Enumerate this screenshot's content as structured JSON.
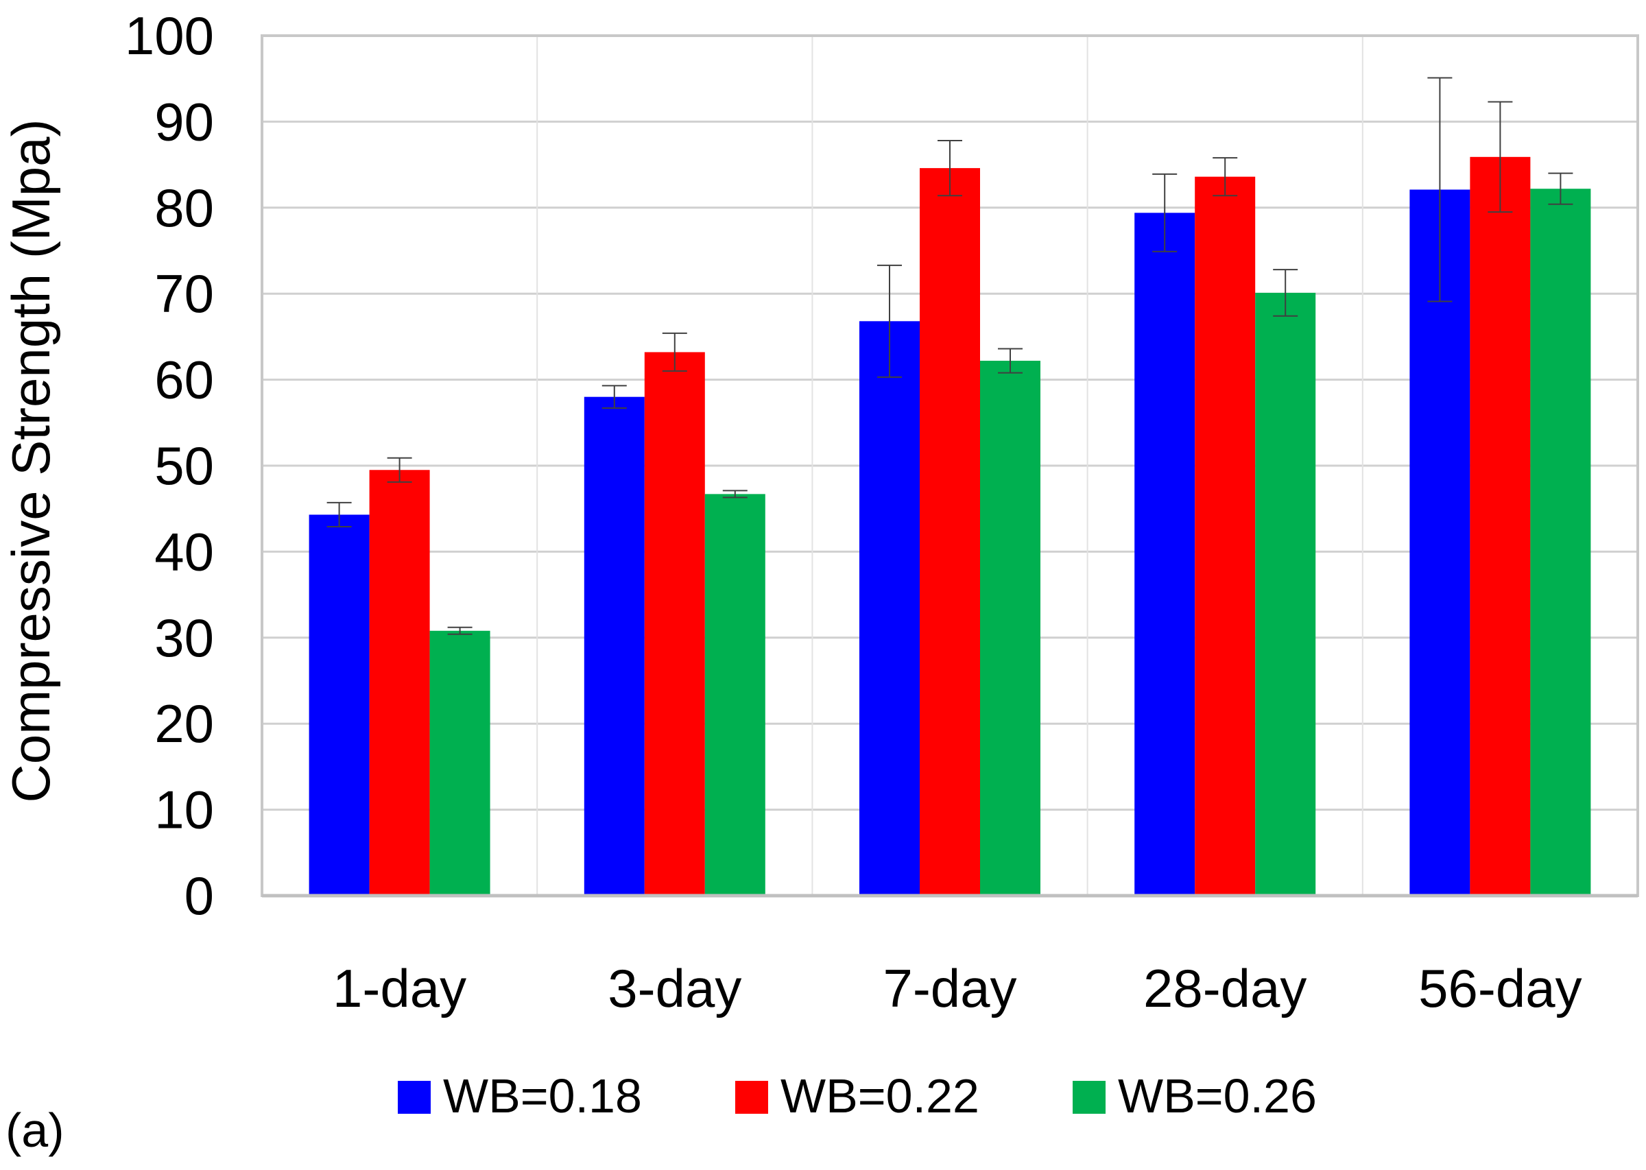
{
  "chart_data": {
    "type": "bar",
    "panel_label": "(a)",
    "title": "",
    "xlabel": "",
    "ylabel": "Compressive Strength (Mpa)",
    "ylim": [
      0,
      100
    ],
    "yticks": [
      0,
      10,
      20,
      30,
      40,
      50,
      60,
      70,
      80,
      90,
      100
    ],
    "grid": true,
    "legend_position": "bottom",
    "categories": [
      "1-day",
      "3-day",
      "7-day",
      "28-day",
      "56-day"
    ],
    "series": [
      {
        "name": "WB=0.18",
        "color": "#0000ff",
        "values": [
          44.3,
          58.0,
          66.8,
          79.4,
          82.1
        ],
        "errors": [
          1.4,
          1.3,
          6.5,
          4.5,
          13.0
        ]
      },
      {
        "name": "WB=0.22",
        "color": "#ff0000",
        "values": [
          49.5,
          63.2,
          84.6,
          83.6,
          85.9
        ],
        "errors": [
          1.4,
          2.2,
          3.2,
          2.2,
          6.4
        ]
      },
      {
        "name": "WB=0.26",
        "color": "#00b050",
        "values": [
          30.8,
          46.7,
          62.2,
          70.1,
          82.2
        ],
        "errors": [
          0.4,
          0.4,
          1.4,
          2.7,
          1.8
        ]
      }
    ]
  }
}
